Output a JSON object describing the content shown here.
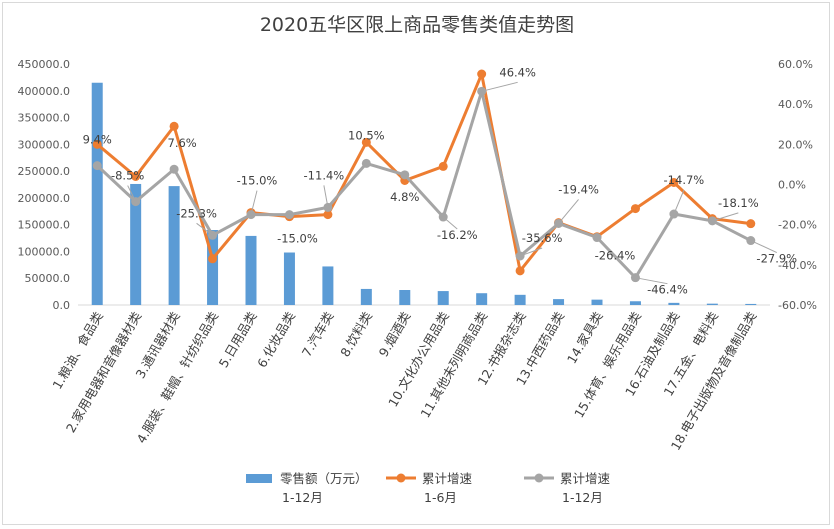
{
  "chart_data": {
    "type": "bar",
    "title": "2020五华区限上商品零售类值走势图",
    "categories": [
      "1.粮油、食品类",
      "2.家用电器和音像器材类",
      "3.通讯器材类",
      "4.服装、鞋帽、针纺织品类",
      "5.日用品类",
      "6.化妆品类",
      "7.汽车类",
      "8.饮料类",
      "9.烟酒类",
      "10.文化办公用品类",
      "11.其他未列明商品类",
      "12.书报杂志类",
      "13.中西药品类",
      "14.家具类",
      "15.体育、娱乐用品类",
      "16.石油及制品类",
      "17.五金、电料类",
      "18.电子出版物及音像制品类"
    ],
    "left_axis": {
      "ylim": [
        0,
        450000
      ],
      "ticks": [
        "0.0",
        "50000.0",
        "100000.0",
        "150000.0",
        "200000.0",
        "250000.0",
        "300000.0",
        "350000.0",
        "400000.0",
        "450000.0"
      ]
    },
    "right_axis": {
      "ylim": [
        -60,
        60
      ],
      "ticks": [
        "-60.0%",
        "-40.0%",
        "-20.0%",
        "0.0%",
        "20.0%",
        "40.0%",
        "60.0%"
      ]
    },
    "grid": false,
    "legend_position": "bottom",
    "series": [
      {
        "name": "零售额（万元）1-12月",
        "legend_line1": "零售额（万元）",
        "legend_line2": "1-12月",
        "type": "bar",
        "axis": "left",
        "color": "#5b9bd5",
        "values": [
          415000,
          226000,
          222000,
          140000,
          129000,
          98000,
          72000,
          30000,
          28000,
          26000,
          22000,
          19000,
          11000,
          10000,
          7000,
          4000,
          2500,
          2000
        ]
      },
      {
        "name": "累计增速1-6月",
        "legend_line1": "累计增速",
        "legend_line2": "1-6月",
        "type": "line",
        "axis": "right",
        "color": "#ed7d31",
        "values": [
          20,
          4,
          29,
          -37,
          -14,
          -16,
          -15,
          21,
          2,
          9,
          55,
          -43,
          -19,
          -26,
          -12,
          1,
          -17,
          -19.5
        ]
      },
      {
        "name": "累计增速1-12月",
        "legend_line1": "累计增速",
        "legend_line2": "1-12月",
        "type": "line",
        "axis": "right",
        "color": "#a5a5a5",
        "values": [
          9.4,
          -8.5,
          7.6,
          -25.3,
          -15.0,
          -15.0,
          -11.4,
          10.5,
          4.8,
          -16.2,
          46.4,
          -35.6,
          -19.4,
          -26.4,
          -46.4,
          -14.7,
          -18.1,
          -27.9
        ],
        "labels": [
          "9.4%",
          "-8.5%",
          "7.6%",
          "-25.3%",
          "-15.0%",
          "-15.0%",
          "-11.4%",
          "10.5%",
          "4.8%",
          "-16.2%",
          "46.4%",
          "-35.6%",
          "-19.4%",
          "-26.4%",
          "-46.4%",
          "-14.7%",
          "-18.1%",
          "-27.9%"
        ]
      }
    ]
  }
}
